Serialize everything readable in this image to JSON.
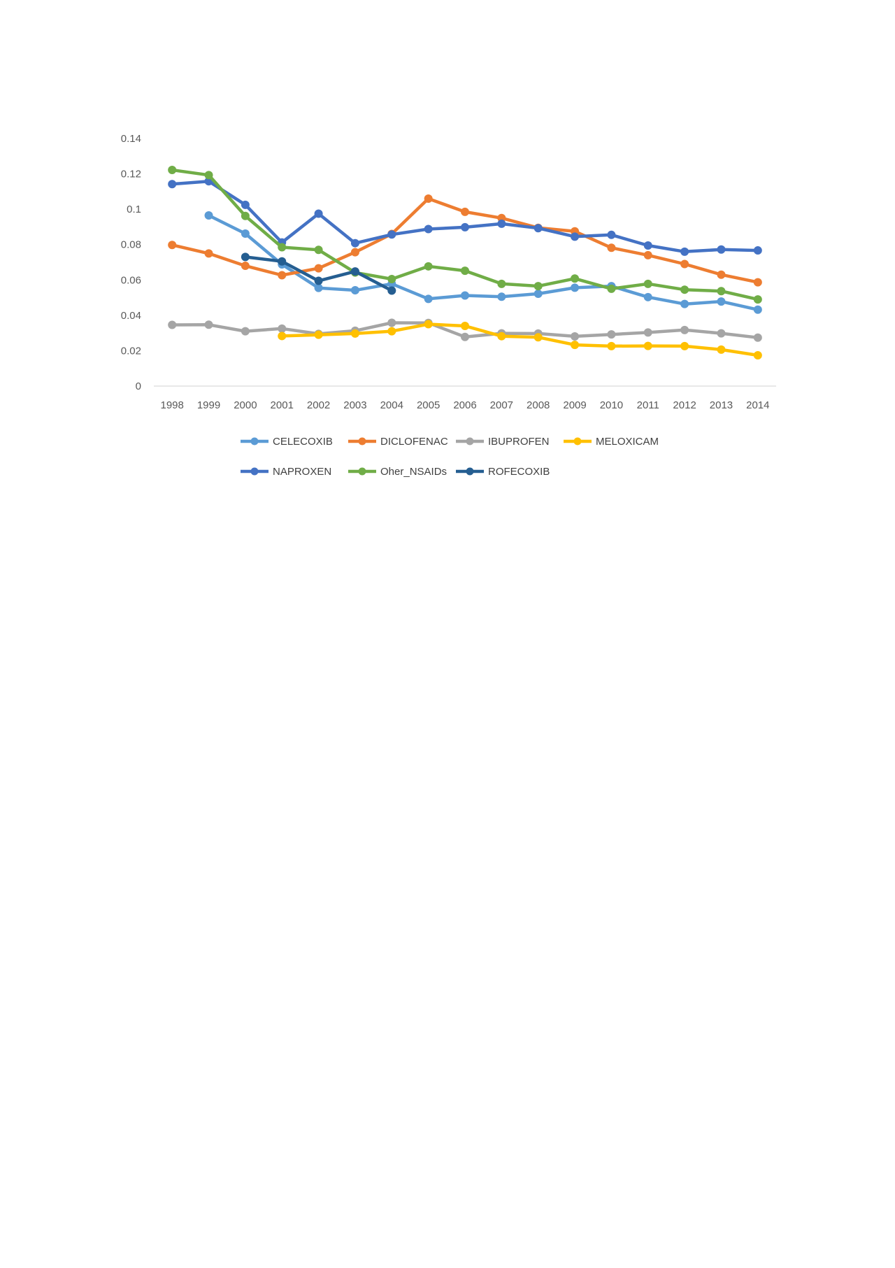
{
  "chart_data": {
    "type": "line",
    "title": "",
    "xlabel": "",
    "ylabel": "",
    "ylim": [
      0,
      0.14
    ],
    "y_ticks": [
      "0",
      "0.02",
      "0.04",
      "0.06",
      "0.08",
      "0.1",
      "0.12",
      "0.14"
    ],
    "grid": false,
    "legend_position": "bottom",
    "categories": [
      "1998",
      "1999",
      "2000",
      "2001",
      "2002",
      "2003",
      "2004",
      "2005",
      "2006",
      "2007",
      "2008",
      "2009",
      "2010",
      "2011",
      "2012",
      "2013",
      "2014"
    ],
    "series": [
      {
        "name": "CELECOXIB",
        "color": "#5b9bd5",
        "values": [
          null,
          0.0965,
          0.0862,
          0.0688,
          0.0555,
          0.0542,
          0.0578,
          0.0493,
          0.0512,
          0.0505,
          0.0522,
          0.0556,
          0.0565,
          0.0503,
          0.0464,
          0.0478,
          0.0432
        ]
      },
      {
        "name": "DICLOFENAC",
        "color": "#ed7d31",
        "values": [
          0.0798,
          0.075,
          0.068,
          0.0627,
          0.0666,
          0.0757,
          0.086,
          0.106,
          0.0985,
          0.095,
          0.0895,
          0.0875,
          0.0782,
          0.074,
          0.069,
          0.063,
          0.0587
        ]
      },
      {
        "name": "IBUPROFEN",
        "color": "#a5a5a5",
        "values": [
          0.0346,
          0.0347,
          0.031,
          0.0325,
          0.0295,
          0.0313,
          0.0358,
          0.0357,
          0.0278,
          0.0298,
          0.0297,
          0.0281,
          0.0292,
          0.0303,
          0.0317,
          0.0298,
          0.0274
        ]
      },
      {
        "name": "MELOXICAM",
        "color": "#ffc000",
        "values": [
          null,
          null,
          null,
          0.0283,
          0.029,
          0.0297,
          0.031,
          0.035,
          0.034,
          0.0282,
          0.0276,
          0.0233,
          0.0226,
          0.0227,
          0.0226,
          0.0206,
          0.0174
        ]
      },
      {
        "name": "NAPROXEN",
        "color": "#4472c4",
        "values": [
          0.1142,
          0.1158,
          0.1025,
          0.0812,
          0.0975,
          0.0808,
          0.0857,
          0.0888,
          0.0898,
          0.0918,
          0.0893,
          0.0845,
          0.0855,
          0.0795,
          0.076,
          0.0772,
          0.0767
        ]
      },
      {
        "name": "Oher_NSAIDs",
        "color": "#70ad47",
        "values": [
          0.1222,
          0.1193,
          0.0962,
          0.0785,
          0.077,
          0.0642,
          0.0605,
          0.0677,
          0.0652,
          0.0578,
          0.0565,
          0.0608,
          0.055,
          0.0578,
          0.0545,
          0.0537,
          0.049
        ]
      },
      {
        "name": "ROFECOXIB",
        "color": "#255e91",
        "values": [
          null,
          null,
          0.073,
          0.0705,
          0.0595,
          0.0648,
          0.054,
          null,
          null,
          null,
          null,
          null,
          null,
          null,
          null,
          null,
          null
        ]
      }
    ]
  }
}
